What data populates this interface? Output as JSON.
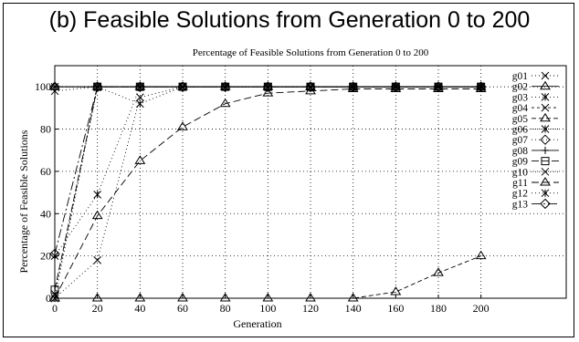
{
  "page_title": "(b) Feasible Solutions from Generation 0 to 200",
  "chart_data": {
    "type": "line",
    "title": "Percentage of Feasible Solutions from Generation 0 to 200",
    "xlabel": "Generation",
    "ylabel": "Percentage of Feasible Solutions",
    "xlim": [
      0,
      240
    ],
    "ylim": [
      0,
      110
    ],
    "x_ticks": [
      0,
      20,
      40,
      60,
      80,
      100,
      120,
      140,
      160,
      180,
      200
    ],
    "y_ticks": [
      0,
      20,
      40,
      60,
      80,
      100
    ],
    "grid": true,
    "legend_position": "right",
    "x": [
      0,
      20,
      40,
      60,
      80,
      100,
      120,
      140,
      160,
      180,
      200
    ],
    "series": [
      {
        "name": "g01",
        "marker": "x",
        "dash": "1,3",
        "values": [
          0,
          18,
          95,
          100,
          100,
          100,
          100,
          100,
          100,
          100,
          100
        ]
      },
      {
        "name": "g02",
        "marker": "triangle",
        "dash": "",
        "values": [
          100,
          100,
          100,
          100,
          100,
          100,
          100,
          100,
          100,
          100,
          100
        ]
      },
      {
        "name": "g03",
        "marker": "asterisk",
        "dash": "1,3",
        "values": [
          98,
          100,
          92,
          100,
          100,
          100,
          100,
          100,
          100,
          100,
          100
        ]
      },
      {
        "name": "g04",
        "marker": "x",
        "dash": "3,3",
        "values": [
          100,
          100,
          100,
          100,
          100,
          100,
          100,
          100,
          100,
          100,
          100
        ]
      },
      {
        "name": "g05",
        "marker": "triangle",
        "dash": "5,3",
        "values": [
          0,
          0,
          0,
          0,
          0,
          0,
          0,
          0,
          3,
          12,
          20
        ]
      },
      {
        "name": "g06",
        "marker": "asterisk",
        "dash": "1,3",
        "values": [
          20,
          49,
          100,
          100,
          100,
          100,
          100,
          100,
          100,
          100,
          100
        ]
      },
      {
        "name": "g07",
        "marker": "diamond",
        "dash": "1,3",
        "values": [
          100,
          100,
          100,
          100,
          100,
          100,
          100,
          100,
          100,
          100,
          100
        ]
      },
      {
        "name": "g08",
        "marker": "plus",
        "dash": "",
        "values": [
          100,
          100,
          100,
          100,
          100,
          100,
          100,
          100,
          100,
          100,
          100
        ]
      },
      {
        "name": "g09",
        "marker": "square",
        "dash": "8,3",
        "values": [
          4,
          100,
          100,
          100,
          100,
          100,
          100,
          100,
          100,
          100,
          100
        ]
      },
      {
        "name": "g10",
        "marker": "x",
        "dash": "1,3",
        "values": [
          2,
          100,
          100,
          100,
          100,
          100,
          100,
          100,
          100,
          100,
          100
        ]
      },
      {
        "name": "g11",
        "marker": "triangle",
        "dash": "8,4",
        "values": [
          0,
          39,
          65,
          81,
          92,
          97,
          98,
          99,
          99,
          99,
          99
        ]
      },
      {
        "name": "g12",
        "marker": "asterisk",
        "dash": "1,3",
        "values": [
          0,
          100,
          100,
          100,
          100,
          100,
          100,
          100,
          100,
          100,
          100
        ]
      },
      {
        "name": "g13",
        "marker": "diamond",
        "dash": "10,3,2,3",
        "values": [
          21,
          100,
          100,
          100,
          100,
          100,
          100,
          100,
          100,
          100,
          100
        ]
      }
    ]
  }
}
